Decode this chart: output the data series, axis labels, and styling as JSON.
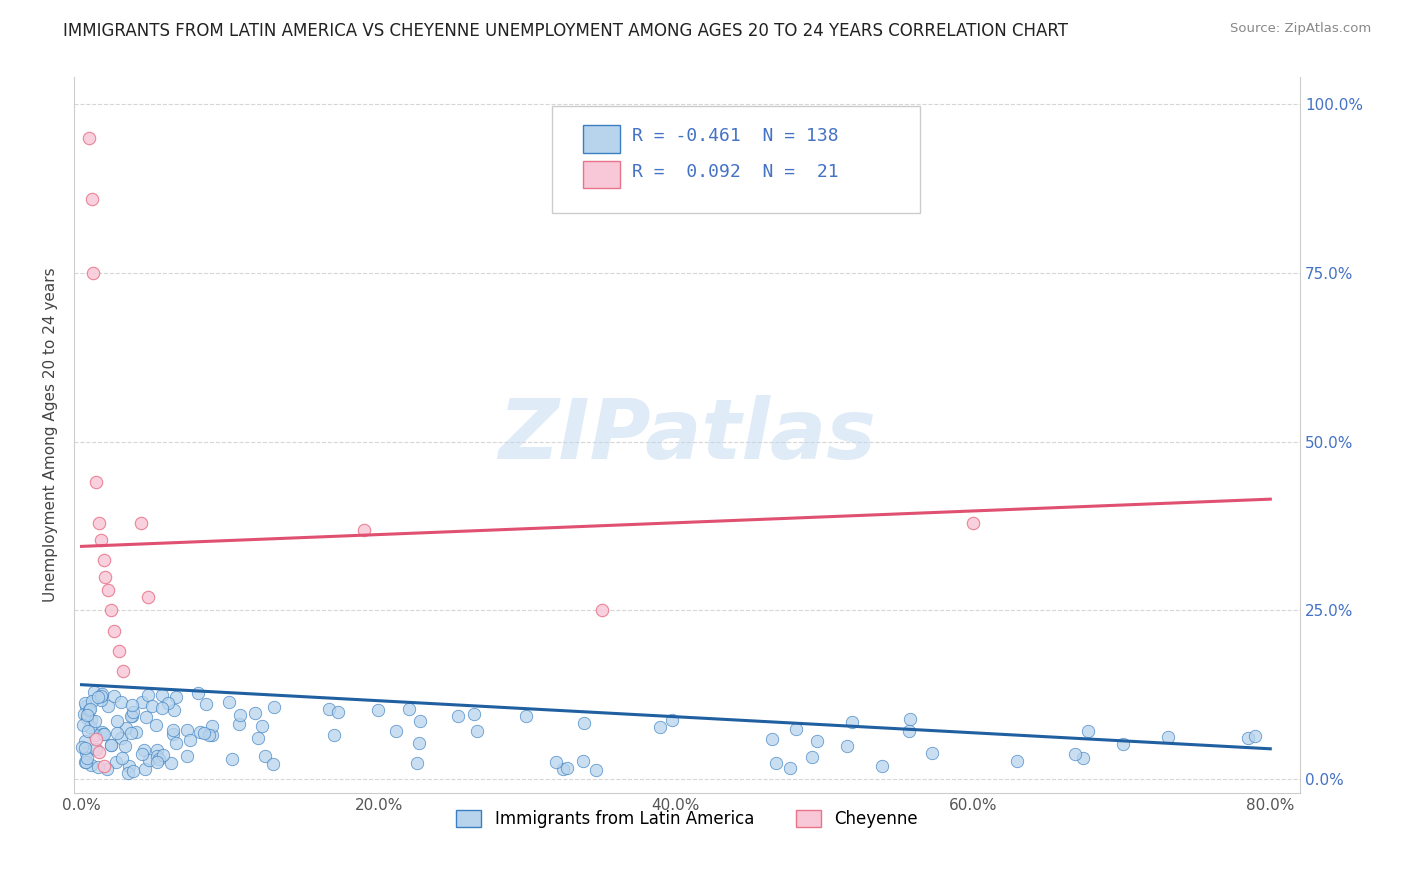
{
  "title": "IMMIGRANTS FROM LATIN AMERICA VS CHEYENNE UNEMPLOYMENT AMONG AGES 20 TO 24 YEARS CORRELATION CHART",
  "source": "Source: ZipAtlas.com",
  "ylabel": "Unemployment Among Ages 20 to 24 years",
  "xlim": [
    -0.005,
    0.82
  ],
  "ylim": [
    -0.02,
    1.04
  ],
  "xticks": [
    0.0,
    0.2,
    0.4,
    0.6,
    0.8
  ],
  "xtick_labels": [
    "0.0%",
    "20.0%",
    "40.0%",
    "60.0%",
    "80.0%"
  ],
  "yticks": [
    0.0,
    0.25,
    0.5,
    0.75,
    1.0
  ],
  "ytick_labels": [
    "0.0%",
    "25.0%",
    "50.0%",
    "75.0%",
    "100.0%"
  ],
  "blue_R": -0.461,
  "blue_N": 138,
  "pink_R": 0.092,
  "pink_N": 21,
  "blue_color": "#b8d4ec",
  "pink_color": "#f9c8d8",
  "blue_edge_color": "#3a7fc1",
  "pink_edge_color": "#e8748a",
  "blue_line_color": "#2060a0",
  "pink_line_color": "#e05070",
  "legend_blue_label": "Immigrants from Latin America",
  "legend_pink_label": "Cheyenne",
  "watermark": "ZIPatlas",
  "blue_trend_x0": 0.0,
  "blue_trend_x1": 0.8,
  "blue_trend_y0": 0.14,
  "blue_trend_y1": 0.045,
  "pink_trend_x0": 0.0,
  "pink_trend_x1": 0.8,
  "pink_trend_y0": 0.345,
  "pink_trend_y1": 0.415,
  "pink_scatter_x": [
    0.005,
    0.007,
    0.008,
    0.01,
    0.012,
    0.013,
    0.015,
    0.016,
    0.018,
    0.02,
    0.022,
    0.025,
    0.028,
    0.04,
    0.045,
    0.19,
    0.35,
    0.6,
    0.01,
    0.012,
    0.015
  ],
  "pink_scatter_y": [
    0.95,
    0.86,
    0.75,
    0.44,
    0.38,
    0.355,
    0.325,
    0.3,
    0.28,
    0.25,
    0.22,
    0.19,
    0.16,
    0.38,
    0.27,
    0.37,
    0.25,
    0.38,
    0.06,
    0.04,
    0.02
  ]
}
